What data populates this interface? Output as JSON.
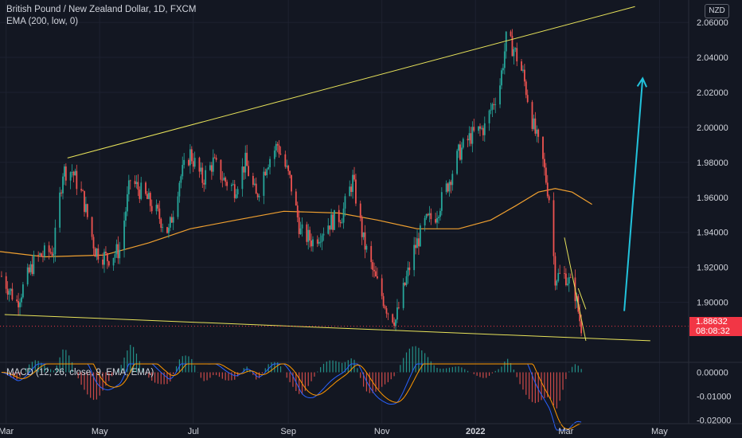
{
  "header": {
    "symbol_title": "British Pound / New Zealand Dollar, 1D, FXCM",
    "indicator": "EMA (200, low, 0)",
    "currency": "NZD",
    "macd_label": "MACD (12, 26, close, 9, EMA, EMA)"
  },
  "last_price": {
    "value": "1.88632",
    "countdown": "08:08:32",
    "color": "#f23645"
  },
  "colors": {
    "background": "#131722",
    "bull": "#26a69a",
    "bear": "#ef5350",
    "ema": "#f0a030",
    "trendlines": "#e8e35a",
    "arrow": "#22c3dc",
    "macd": "#2962ff",
    "signal": "#ff9800"
  },
  "chart_data": {
    "type": "candlestick",
    "price_axis": {
      "ticks": [
        "2.06000",
        "2.04000",
        "2.02000",
        "2.00000",
        "1.98000",
        "1.96000",
        "1.94000",
        "1.92000",
        "1.90000"
      ],
      "range": [
        1.8725,
        2.0705
      ]
    },
    "time_axis": {
      "ticks": [
        "Mar",
        "May",
        "Jul",
        "Sep",
        "Nov",
        "2022",
        "Mar",
        "May"
      ],
      "range": [
        "2021-02-25",
        "2022-05-20"
      ]
    },
    "close_path": [
      [
        "2021-02-26",
        1.915
      ],
      [
        "2021-03-08",
        1.9
      ],
      [
        "2021-03-20",
        1.925
      ],
      [
        "2021-04-01",
        1.93
      ],
      [
        "2021-04-07",
        1.975
      ],
      [
        "2021-04-13",
        1.975
      ],
      [
        "2021-04-20",
        1.96
      ],
      [
        "2021-04-28",
        1.93
      ],
      [
        "2021-05-06",
        1.925
      ],
      [
        "2021-05-14",
        1.93
      ],
      [
        "2021-05-21",
        1.97
      ],
      [
        "2021-05-31",
        1.96
      ],
      [
        "2021-06-08",
        1.95
      ],
      [
        "2021-06-15",
        1.94
      ],
      [
        "2021-06-22",
        1.97
      ],
      [
        "2021-06-29",
        1.985
      ],
      [
        "2021-07-07",
        1.97
      ],
      [
        "2021-07-14",
        1.98
      ],
      [
        "2021-07-21",
        1.97
      ],
      [
        "2021-07-28",
        1.965
      ],
      [
        "2021-08-04",
        1.98
      ],
      [
        "2021-08-11",
        1.96
      ],
      [
        "2021-08-18",
        1.98
      ],
      [
        "2021-08-25",
        1.99
      ],
      [
        "2021-09-02",
        1.97
      ],
      [
        "2021-09-09",
        1.94
      ],
      [
        "2021-09-17",
        1.935
      ],
      [
        "2021-09-27",
        1.945
      ],
      [
        "2021-10-06",
        1.95
      ],
      [
        "2021-10-13",
        1.97
      ],
      [
        "2021-10-20",
        1.935
      ],
      [
        "2021-10-27",
        1.915
      ],
      [
        "2021-11-05",
        1.895
      ],
      [
        "2021-11-10",
        1.89
      ],
      [
        "2021-11-16",
        1.91
      ],
      [
        "2021-11-22",
        1.93
      ],
      [
        "2021-11-29",
        1.945
      ],
      [
        "2021-12-06",
        1.95
      ],
      [
        "2021-12-13",
        1.965
      ],
      [
        "2021-12-21",
        1.985
      ],
      [
        "2021-12-29",
        1.995
      ],
      [
        "2022-01-07",
        2.0
      ],
      [
        "2022-01-17",
        2.025
      ],
      [
        "2022-01-21",
        2.05
      ],
      [
        "2022-01-26",
        2.045
      ],
      [
        "2022-02-01",
        2.03
      ],
      [
        "2022-02-08",
        2.0
      ],
      [
        "2022-02-14",
        1.98
      ],
      [
        "2022-02-18",
        1.96
      ],
      [
        "2022-02-22",
        1.915
      ],
      [
        "2022-03-01",
        1.915
      ],
      [
        "2022-03-04",
        1.91
      ],
      [
        "2022-03-07",
        1.905
      ],
      [
        "2022-03-10",
        1.89
      ],
      [
        "2022-03-11",
        1.8863
      ]
    ],
    "ema_200_low": [
      [
        "2021-02-25",
        1.929
      ],
      [
        "2021-03-26",
        1.926
      ],
      [
        "2021-05-04",
        1.927
      ],
      [
        "2021-06-02",
        1.934
      ],
      [
        "2021-06-29",
        1.942
      ],
      [
        "2021-07-29",
        1.947
      ],
      [
        "2021-08-29",
        1.952
      ],
      [
        "2021-10-04",
        1.951
      ],
      [
        "2021-10-29",
        1.947
      ],
      [
        "2021-11-24",
        1.942
      ],
      [
        "2021-12-21",
        1.942
      ],
      [
        "2022-01-11",
        1.947
      ],
      [
        "2022-01-27",
        1.955
      ],
      [
        "2022-02-11",
        1.963
      ],
      [
        "2022-02-22",
        1.965
      ],
      [
        "2022-03-05",
        1.963
      ],
      [
        "2022-03-18",
        1.956
      ]
    ],
    "trendlines": [
      {
        "from": [
          "2021-04-10",
          1.9825
        ],
        "to": [
          "2022-04-15",
          2.069
        ]
      },
      {
        "from": [
          "2021-02-28",
          1.893
        ],
        "to": [
          "2022-04-25",
          1.878
        ]
      },
      {
        "from": [
          "2022-02-28",
          1.937
        ],
        "to": [
          "2022-03-14",
          1.878
        ]
      },
      {
        "from": [
          "2022-03-09",
          1.908
        ],
        "to": [
          "2022-03-14",
          1.896
        ]
      }
    ],
    "projection_arrow": {
      "from": [
        "2022-04-08",
        1.895
      ],
      "to": [
        "2022-04-20",
        2.028
      ]
    },
    "macd": {
      "ticks": [
        "0.00000",
        "-0.01000",
        "-0.02000"
      ],
      "range": [
        -0.0215,
        0.0035
      ]
    }
  }
}
